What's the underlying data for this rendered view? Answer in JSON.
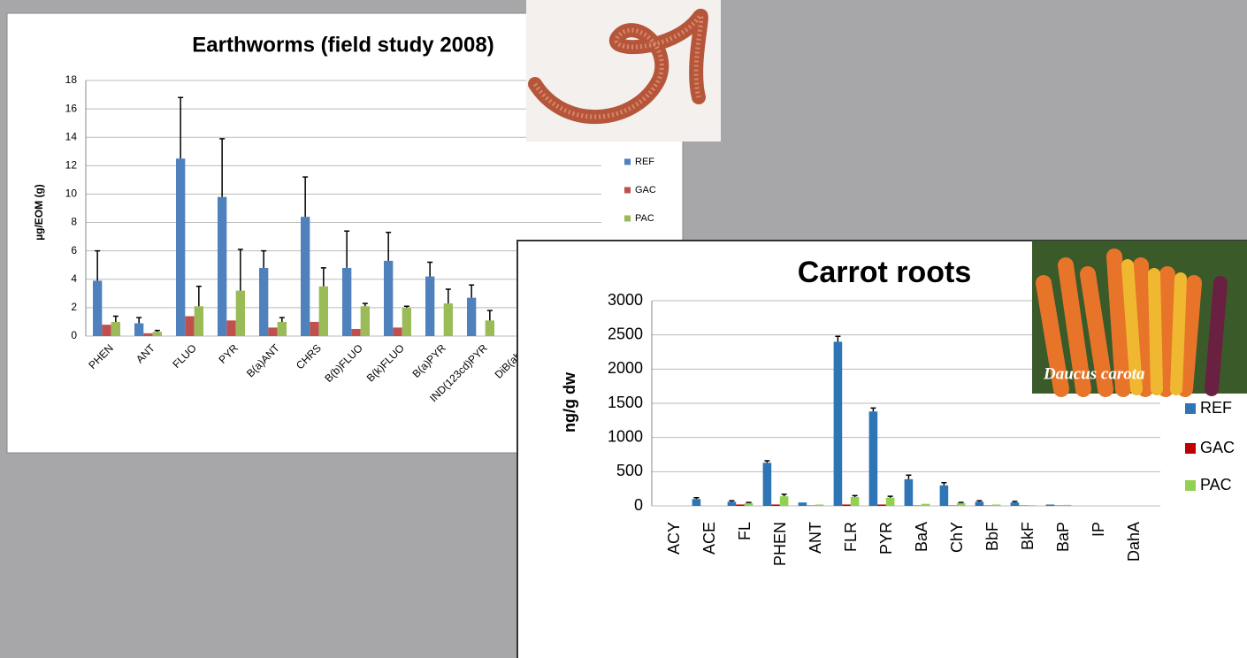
{
  "chart_data": [
    {
      "type": "bar",
      "title": "Earthworms (field study 2008)",
      "y_label": "µg/EOM (g)",
      "categories": [
        "PHEN",
        "ANT",
        "FLUO",
        "PYR",
        "B(a)ANT",
        "CHRS",
        "B(b)FLUO",
        "B(k)FLUO",
        "B(a)PYR",
        "IND(123cd)PYR",
        "DiB(ah)A"
      ],
      "series": [
        {
          "name": "REF",
          "color": "#4f81bd",
          "values": [
            3.9,
            0.9,
            12.5,
            9.8,
            4.8,
            8.4,
            4.8,
            5.3,
            4.2,
            2.7,
            null
          ],
          "errors": [
            2.1,
            0.4,
            4.3,
            4.1,
            1.2,
            2.8,
            2.6,
            2.0,
            1.0,
            0.9,
            null
          ]
        },
        {
          "name": "GAC",
          "color": "#c0504d",
          "values": [
            0.8,
            0.2,
            1.4,
            1.1,
            0.6,
            1.0,
            0.5,
            0.6,
            0,
            0,
            null
          ],
          "errors": [
            null,
            null,
            null,
            null,
            null,
            null,
            null,
            null,
            null,
            null,
            null
          ]
        },
        {
          "name": "PAC",
          "color": "#9bbb59",
          "values": [
            1.0,
            0.3,
            2.1,
            3.2,
            1.0,
            3.5,
            2.1,
            2.0,
            2.3,
            1.1,
            null
          ],
          "errors": [
            0.4,
            0.1,
            1.4,
            2.9,
            0.3,
            1.3,
            0.2,
            0.1,
            1.0,
            0.7,
            null
          ]
        }
      ],
      "ylim": [
        0,
        18
      ],
      "yticks": [
        0,
        2,
        4,
        6,
        8,
        10,
        12,
        14,
        16,
        18
      ],
      "grid": true,
      "legend": "right"
    },
    {
      "type": "bar",
      "title": "Carrot roots",
      "y_label": "ng/g dw",
      "annotations": [
        "Daucus carota"
      ],
      "categories": [
        "ACY",
        "ACE",
        "FL",
        "PHEN",
        "ANT",
        "FLR",
        "PYR",
        "BaA",
        "ChY",
        "BbF",
        "BkF",
        "BaP",
        "IP",
        "DahA"
      ],
      "series": [
        {
          "name": "REF",
          "color": "#2e75b6",
          "values": [
            0,
            100,
            60,
            630,
            50,
            2400,
            1380,
            390,
            300,
            60,
            50,
            20,
            0,
            0
          ],
          "errors": [
            null,
            20,
            15,
            30,
            null,
            80,
            50,
            60,
            40,
            15,
            15,
            null,
            null,
            null
          ]
        },
        {
          "name": "GAC",
          "color": "#c00000",
          "values": [
            0,
            0,
            20,
            20,
            5,
            20,
            20,
            5,
            5,
            5,
            5,
            5,
            0,
            0
          ],
          "errors": [
            null,
            null,
            null,
            null,
            null,
            null,
            null,
            null,
            null,
            null,
            null,
            null,
            null,
            null
          ]
        },
        {
          "name": "PAC",
          "color": "#92d050",
          "values": [
            0,
            0,
            40,
            140,
            20,
            130,
            120,
            30,
            40,
            20,
            10,
            15,
            0,
            0
          ],
          "errors": [
            null,
            null,
            10,
            30,
            null,
            20,
            20,
            null,
            10,
            null,
            null,
            null,
            null,
            null
          ]
        }
      ],
      "ylim": [
        0,
        3000
      ],
      "yticks": [
        0,
        500,
        1000,
        1500,
        2000,
        2500,
        3000
      ],
      "grid": true,
      "legend": "right"
    }
  ]
}
